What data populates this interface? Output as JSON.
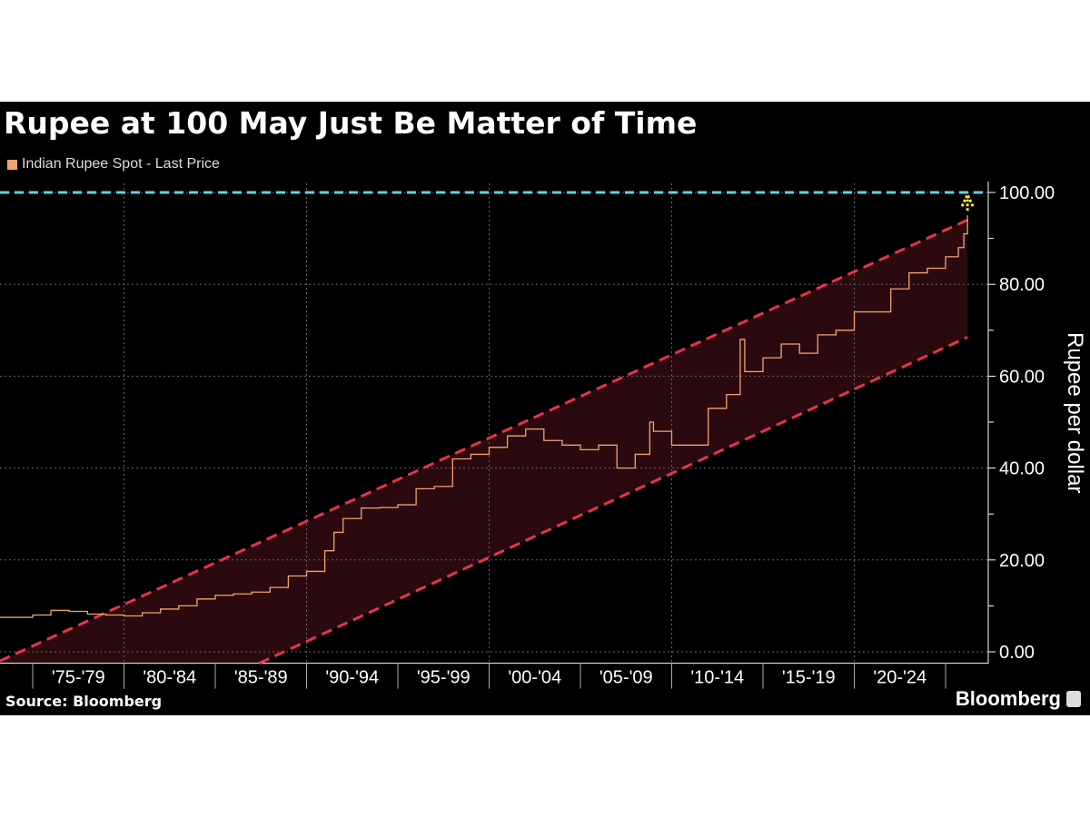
{
  "chart_data": {
    "type": "line",
    "title": "Rupee at 100 May Just Be Matter of Time",
    "legend": [
      "Indian Rupee Spot - Last Price"
    ],
    "ylabel": "Rupee per dollar",
    "ylim": [
      -2.5,
      101
    ],
    "xlim": [
      1973.2,
      2027.4
    ],
    "yticks": [
      "0.00",
      "20.00",
      "40.00",
      "60.00",
      "80.00",
      "100.00"
    ],
    "ytick_values": [
      0,
      20,
      40,
      60,
      80,
      100
    ],
    "xtick_labels": [
      "'75-'79",
      "'80-'84",
      "'85-'89",
      "'90-'94",
      "'95-'99",
      "'00-'04",
      "'05-'09",
      "'10-'14",
      "'15-'19",
      "'20-'24"
    ],
    "xtick_starts": [
      1975,
      1980,
      1985,
      1990,
      1995,
      2000,
      2005,
      2010,
      2015,
      2020
    ],
    "series": [
      {
        "name": "Indian Rupee Spot - Last Price",
        "color": "#f4a36b",
        "x": [
          1973.2,
          1975,
          1976,
          1977,
          1978,
          1979,
          1980,
          1981,
          1982,
          1983,
          1984,
          1985,
          1986,
          1987,
          1988,
          1989,
          1990,
          1991,
          1991.5,
          1992,
          1993,
          1994,
          1995,
          1996,
          1997,
          1998,
          1999,
          2000,
          2001,
          2002,
          2003,
          2004,
          2005,
          2006,
          2007,
          2008,
          2008.8,
          2009,
          2010,
          2011,
          2012,
          2013,
          2013.75,
          2014,
          2015,
          2016,
          2017,
          2018,
          2019,
          2020,
          2021,
          2022,
          2023,
          2024,
          2025,
          2025.7,
          2026,
          2026.2
        ],
        "y": [
          7.5,
          8,
          9,
          8.8,
          8.2,
          8,
          7.8,
          8.5,
          9.3,
          10,
          11.5,
          12.3,
          12.6,
          13,
          14,
          16.5,
          17.5,
          22,
          26,
          29,
          31.3,
          31.4,
          32,
          35.5,
          36,
          42,
          43,
          44.5,
          47,
          48.5,
          46,
          45,
          44,
          45,
          40,
          43,
          50,
          48,
          45,
          45,
          53,
          56,
          68,
          61,
          64,
          67,
          65,
          69,
          70,
          74,
          74,
          79,
          82.5,
          83.5,
          86,
          88,
          91,
          95
        ]
      }
    ],
    "channel": {
      "upper": [
        [
          1973.2,
          -2
        ],
        [
          2026.2,
          94
        ]
      ],
      "lower": [
        [
          1987.4,
          -2.5
        ],
        [
          2026.2,
          68.5
        ]
      ],
      "color": "#e8334a"
    },
    "target_line": {
      "value": 100,
      "color": "#5fd3e0"
    },
    "source": "Source: Bloomberg",
    "brand": "Bloomberg"
  }
}
